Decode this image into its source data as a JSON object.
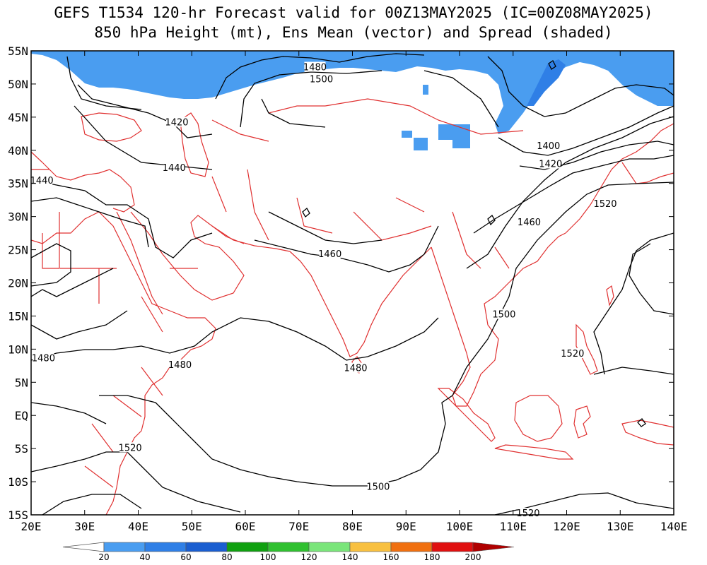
{
  "title": {
    "line1": "GEFS T1534 120-hr Forecast valid for 00Z13MAY2025 (IC=00Z08MAY2025)",
    "line2": "850 hPa Height (mt), Ens Mean (vector) and Spread (shaded)"
  },
  "map": {
    "lon_range": [
      20,
      140
    ],
    "lat_range": [
      -15,
      55
    ],
    "lon_ticks": [
      "20E",
      "30E",
      "40E",
      "50E",
      "60E",
      "70E",
      "80E",
      "90E",
      "100E",
      "110E",
      "120E",
      "130E",
      "140E"
    ],
    "lat_ticks": [
      "55N",
      "50N",
      "45N",
      "40N",
      "35N",
      "30N",
      "25N",
      "20N",
      "15N",
      "10N",
      "5N",
      "EQ",
      "5S",
      "10S",
      "15S"
    ],
    "coastline_color": "#e03030",
    "contour_color": "#000000"
  },
  "contour_labels": [
    {
      "text": "1480",
      "lon": 73,
      "lat": 52.6
    },
    {
      "text": "1500",
      "lon": 74.2,
      "lat": 50.8
    },
    {
      "text": "1420",
      "lon": 47.2,
      "lat": 44.3
    },
    {
      "text": "1440",
      "lon": 46.7,
      "lat": 37.4
    },
    {
      "text": "1440",
      "lon": 22,
      "lat": 35.5
    },
    {
      "text": "1400",
      "lon": 116.6,
      "lat": 40.7
    },
    {
      "text": "1420",
      "lon": 117,
      "lat": 38
    },
    {
      "text": "1520",
      "lon": 127.2,
      "lat": 32
    },
    {
      "text": "1460",
      "lon": 113,
      "lat": 29.2
    },
    {
      "text": "1460",
      "lon": 75.8,
      "lat": 24.4
    },
    {
      "text": "1500",
      "lon": 108.3,
      "lat": 15.3
    },
    {
      "text": "1520",
      "lon": 121.1,
      "lat": 9.4
    },
    {
      "text": "1480",
      "lon": 22.3,
      "lat": 8.7
    },
    {
      "text": "1480",
      "lon": 47.8,
      "lat": 7.7
    },
    {
      "text": "1480",
      "lon": 80.6,
      "lat": 7.2
    },
    {
      "text": "1520",
      "lon": 38.5,
      "lat": -4.8
    },
    {
      "text": "1500",
      "lon": 84.8,
      "lat": -10.7
    },
    {
      "text": "1520",
      "lon": 112.8,
      "lat": -14.7
    }
  ],
  "colorbar": {
    "labels": [
      "20",
      "40",
      "60",
      "80",
      "100",
      "120",
      "140",
      "160",
      "180",
      "200"
    ],
    "colors": [
      "#4a9df0",
      "#2f7fe6",
      "#1a5ed0",
      "#10a010",
      "#30c030",
      "#7ae57a",
      "#f8c040",
      "#f07010",
      "#e01010",
      "#b00000"
    ]
  },
  "shading": {
    "spread_20_40": "#4a9df0",
    "spread_40_60": "#2f7fe6"
  }
}
